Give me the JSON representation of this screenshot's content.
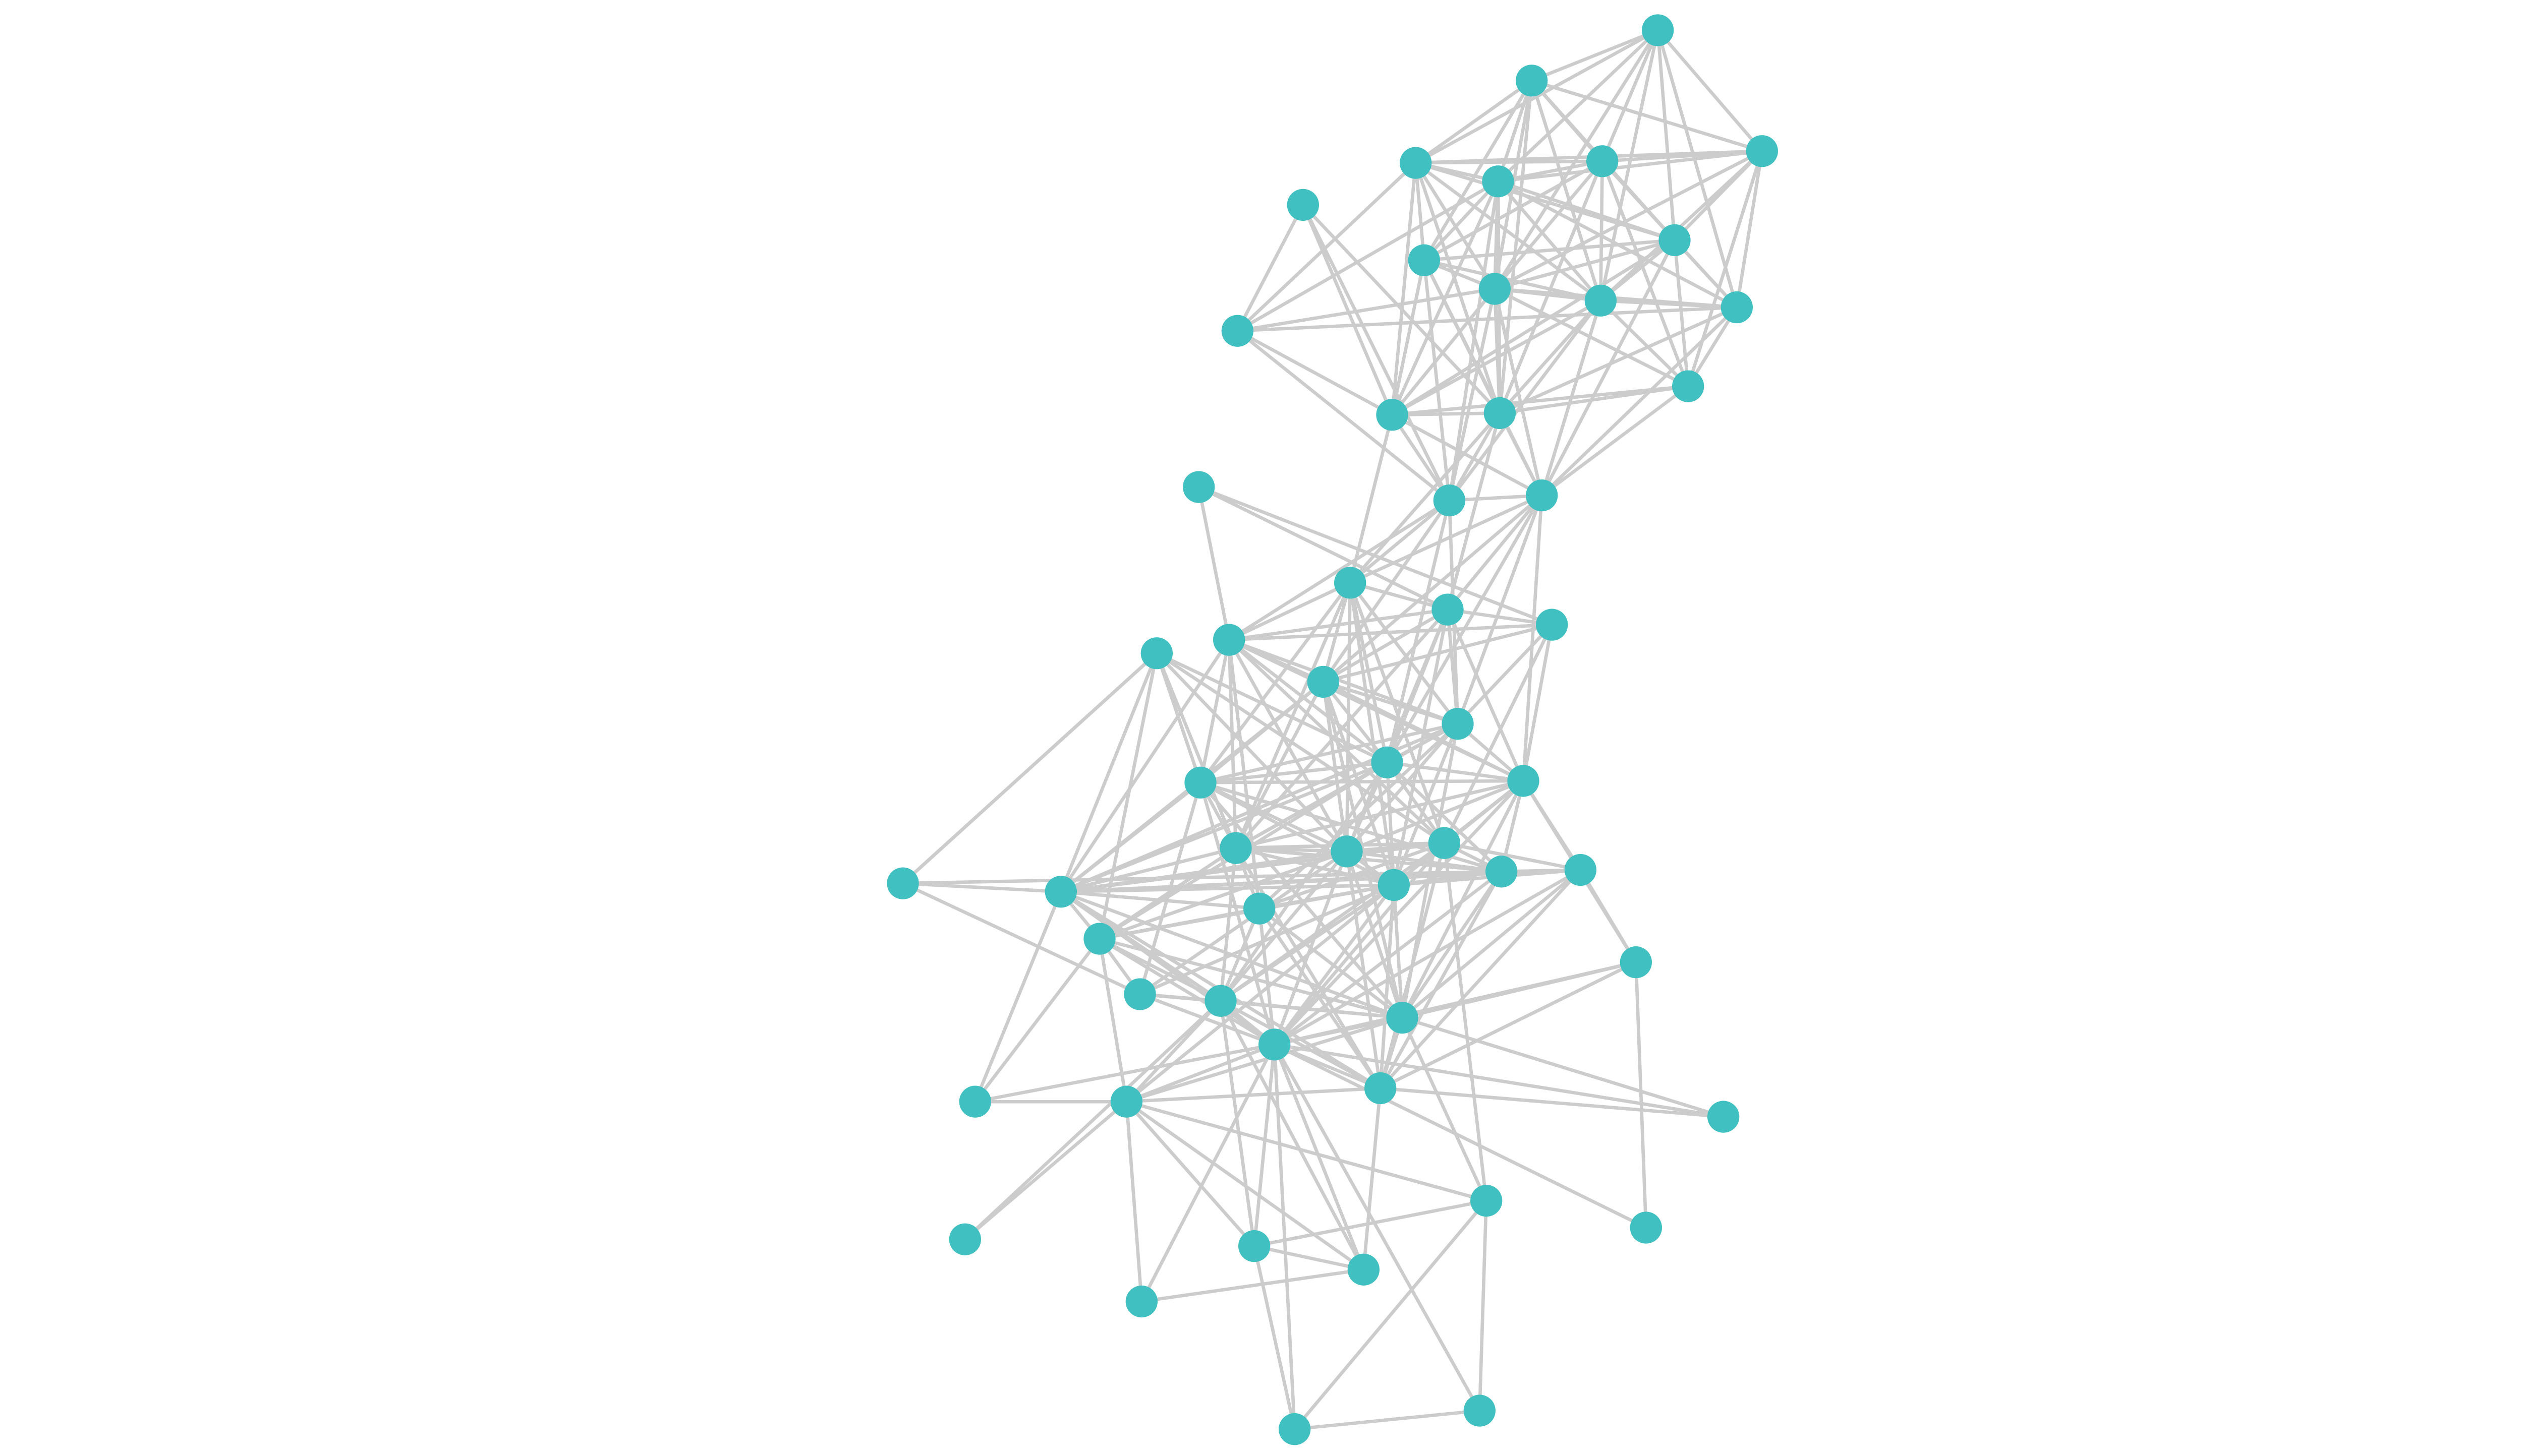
{
  "graph": {
    "type": "network",
    "directed": false,
    "node_color": "#40c0c0",
    "edge_color": "#cccccc",
    "background": "#ffffff",
    "node_count": 56,
    "edges": [
      [
        0,
        1
      ],
      [
        0,
        2
      ],
      [
        0,
        3
      ],
      [
        0,
        4
      ],
      [
        0,
        5
      ],
      [
        0,
        7
      ],
      [
        0,
        9
      ],
      [
        0,
        10
      ],
      [
        0,
        11
      ],
      [
        1,
        3
      ],
      [
        1,
        4
      ],
      [
        1,
        5
      ],
      [
        1,
        7
      ],
      [
        1,
        8
      ],
      [
        1,
        9
      ],
      [
        1,
        10
      ],
      [
        1,
        2
      ],
      [
        1,
        15
      ],
      [
        2,
        3
      ],
      [
        2,
        5
      ],
      [
        2,
        7
      ],
      [
        2,
        10
      ],
      [
        2,
        11
      ],
      [
        2,
        13
      ],
      [
        2,
        9
      ],
      [
        2,
        4
      ],
      [
        3,
        4
      ],
      [
        3,
        5
      ],
      [
        3,
        12
      ],
      [
        3,
        8
      ],
      [
        3,
        9
      ],
      [
        3,
        10
      ],
      [
        3,
        14
      ],
      [
        3,
        15
      ],
      [
        3,
        7
      ],
      [
        4,
        5
      ],
      [
        4,
        7
      ],
      [
        4,
        8
      ],
      [
        4,
        9
      ],
      [
        4,
        10
      ],
      [
        4,
        11
      ],
      [
        4,
        14
      ],
      [
        4,
        15
      ],
      [
        4,
        16
      ],
      [
        5,
        7
      ],
      [
        5,
        9
      ],
      [
        5,
        10
      ],
      [
        5,
        11
      ],
      [
        5,
        13
      ],
      [
        5,
        15
      ],
      [
        5,
        8
      ],
      [
        6,
        12
      ],
      [
        6,
        14
      ],
      [
        6,
        16
      ],
      [
        6,
        15
      ],
      [
        7,
        8
      ],
      [
        7,
        9
      ],
      [
        7,
        10
      ],
      [
        7,
        11
      ],
      [
        7,
        13
      ],
      [
        7,
        14
      ],
      [
        7,
        17
      ],
      [
        8,
        9
      ],
      [
        8,
        10
      ],
      [
        8,
        14
      ],
      [
        8,
        15
      ],
      [
        8,
        16
      ],
      [
        8,
        17
      ],
      [
        9,
        10
      ],
      [
        9,
        11
      ],
      [
        9,
        12
      ],
      [
        9,
        14
      ],
      [
        9,
        15
      ],
      [
        9,
        16
      ],
      [
        9,
        17
      ],
      [
        9,
        13
      ],
      [
        10,
        11
      ],
      [
        10,
        13
      ],
      [
        10,
        14
      ],
      [
        10,
        15
      ],
      [
        10,
        16
      ],
      [
        10,
        17
      ],
      [
        11,
        13
      ],
      [
        11,
        15
      ],
      [
        11,
        17
      ],
      [
        12,
        14
      ],
      [
        12,
        16
      ],
      [
        12,
        4
      ],
      [
        12,
        11
      ],
      [
        13,
        15
      ],
      [
        13,
        17
      ],
      [
        13,
        14
      ],
      [
        14,
        15
      ],
      [
        14,
        16
      ],
      [
        14,
        17
      ],
      [
        14,
        19
      ],
      [
        15,
        16
      ],
      [
        15,
        17
      ],
      [
        15,
        19
      ],
      [
        15,
        20
      ],
      [
        16,
        17
      ],
      [
        16,
        19
      ],
      [
        16,
        24
      ],
      [
        16,
        22
      ],
      [
        16,
        26
      ],
      [
        16,
        25
      ],
      [
        17,
        20
      ],
      [
        17,
        24
      ],
      [
        17,
        25
      ],
      [
        17,
        27
      ],
      [
        17,
        26
      ],
      [
        17,
        19
      ],
      [
        18,
        22
      ],
      [
        18,
        20
      ],
      [
        18,
        21
      ],
      [
        19,
        29
      ],
      [
        19,
        28
      ],
      [
        19,
        22
      ],
      [
        19,
        26
      ],
      [
        19,
        25
      ],
      [
        19,
        20
      ],
      [
        19,
        24
      ],
      [
        19,
        30
      ],
      [
        19,
        32
      ],
      [
        19,
        31
      ],
      [
        20,
        21
      ],
      [
        20,
        22
      ],
      [
        20,
        24
      ],
      [
        20,
        25
      ],
      [
        20,
        26
      ],
      [
        20,
        27
      ],
      [
        20,
        30
      ],
      [
        20,
        32
      ],
      [
        20,
        29
      ],
      [
        21,
        22
      ],
      [
        21,
        25
      ],
      [
        21,
        27
      ],
      [
        21,
        31
      ],
      [
        21,
        24
      ],
      [
        22,
        24
      ],
      [
        22,
        25
      ],
      [
        22,
        26
      ],
      [
        22,
        27
      ],
      [
        22,
        28
      ],
      [
        22,
        29
      ],
      [
        22,
        30
      ],
      [
        22,
        31
      ],
      [
        22,
        36
      ],
      [
        22,
        37
      ],
      [
        23,
        28
      ],
      [
        23,
        29
      ],
      [
        23,
        31
      ],
      [
        23,
        35
      ],
      [
        23,
        36
      ],
      [
        23,
        38
      ],
      [
        23,
        30
      ],
      [
        23,
        26
      ],
      [
        24,
        25
      ],
      [
        24,
        26
      ],
      [
        24,
        27
      ],
      [
        24,
        28
      ],
      [
        24,
        29
      ],
      [
        24,
        30
      ],
      [
        24,
        32
      ],
      [
        24,
        36
      ],
      [
        24,
        41
      ],
      [
        25,
        26
      ],
      [
        25,
        27
      ],
      [
        25,
        28
      ],
      [
        25,
        29
      ],
      [
        25,
        30
      ],
      [
        25,
        32
      ],
      [
        25,
        36
      ],
      [
        25,
        37
      ],
      [
        25,
        41
      ],
      [
        26,
        27
      ],
      [
        26,
        28
      ],
      [
        26,
        29
      ],
      [
        26,
        30
      ],
      [
        26,
        31
      ],
      [
        26,
        32
      ],
      [
        26,
        33
      ],
      [
        26,
        36
      ],
      [
        26,
        38
      ],
      [
        26,
        40
      ],
      [
        27,
        28
      ],
      [
        27,
        29
      ],
      [
        27,
        30
      ],
      [
        27,
        31
      ],
      [
        27,
        32
      ],
      [
        27,
        33
      ],
      [
        27,
        34
      ],
      [
        27,
        42
      ],
      [
        27,
        43
      ],
      [
        27,
        41
      ],
      [
        28,
        29
      ],
      [
        28,
        30
      ],
      [
        28,
        32
      ],
      [
        28,
        33
      ],
      [
        28,
        36
      ],
      [
        28,
        39
      ],
      [
        28,
        43
      ],
      [
        28,
        41
      ],
      [
        29,
        30
      ],
      [
        29,
        31
      ],
      [
        29,
        32
      ],
      [
        29,
        33
      ],
      [
        29,
        36
      ],
      [
        29,
        37
      ],
      [
        29,
        38
      ],
      [
        29,
        40
      ],
      [
        29,
        44
      ],
      [
        30,
        31
      ],
      [
        30,
        32
      ],
      [
        30,
        33
      ],
      [
        30,
        36
      ],
      [
        30,
        38
      ],
      [
        30,
        39
      ],
      [
        30,
        40
      ],
      [
        30,
        41
      ],
      [
        30,
        44
      ],
      [
        30,
        43
      ],
      [
        31,
        32
      ],
      [
        31,
        33
      ],
      [
        31,
        34
      ],
      [
        31,
        36
      ],
      [
        31,
        37
      ],
      [
        31,
        40
      ],
      [
        31,
        43
      ],
      [
        31,
        44
      ],
      [
        32,
        33
      ],
      [
        32,
        34
      ],
      [
        32,
        36
      ],
      [
        32,
        37
      ],
      [
        32,
        38
      ],
      [
        32,
        39
      ],
      [
        32,
        40
      ],
      [
        32,
        41
      ],
      [
        32,
        43
      ],
      [
        32,
        44
      ],
      [
        32,
        46
      ],
      [
        33,
        34
      ],
      [
        33,
        36
      ],
      [
        33,
        41
      ],
      [
        33,
        43
      ],
      [
        33,
        44
      ],
      [
        34,
        36
      ],
      [
        34,
        41
      ],
      [
        34,
        43
      ],
      [
        34,
        44
      ],
      [
        34,
        42
      ],
      [
        35,
        36
      ],
      [
        35,
        33
      ],
      [
        35,
        23
      ],
      [
        35,
        39
      ],
      [
        36,
        37
      ],
      [
        36,
        38
      ],
      [
        36,
        40
      ],
      [
        36,
        41
      ],
      [
        36,
        43
      ],
      [
        36,
        44
      ],
      [
        36,
        45
      ],
      [
        37,
        38
      ],
      [
        37,
        40
      ],
      [
        37,
        41
      ],
      [
        37,
        43
      ],
      [
        37,
        44
      ],
      [
        38,
        39
      ],
      [
        38,
        40
      ],
      [
        38,
        41
      ],
      [
        38,
        46
      ],
      [
        38,
        43
      ],
      [
        39,
        40
      ],
      [
        39,
        41
      ],
      [
        39,
        43
      ],
      [
        40,
        41
      ],
      [
        40,
        43
      ],
      [
        40,
        44
      ],
      [
        40,
        46
      ],
      [
        40,
        51
      ],
      [
        40,
        52
      ],
      [
        41,
        42
      ],
      [
        41,
        43
      ],
      [
        41,
        44
      ],
      [
        41,
        46
      ],
      [
        41,
        48
      ],
      [
        42,
        43
      ],
      [
        42,
        44
      ],
      [
        42,
        49
      ],
      [
        43,
        44
      ],
      [
        43,
        45
      ],
      [
        43,
        46
      ],
      [
        43,
        49
      ],
      [
        43,
        51
      ],
      [
        43,
        52
      ],
      [
        43,
        54
      ],
      [
        43,
        55
      ],
      [
        43,
        47
      ],
      [
        44,
        46
      ],
      [
        44,
        47
      ],
      [
        44,
        52
      ],
      [
        45,
        46
      ],
      [
        45,
        38
      ],
      [
        46,
        50
      ],
      [
        46,
        53
      ],
      [
        46,
        51
      ],
      [
        46,
        48
      ],
      [
        46,
        52
      ],
      [
        48,
        51
      ],
      [
        48,
        54
      ],
      [
        48,
        55
      ],
      [
        48,
        31
      ],
      [
        50,
        40
      ],
      [
        51,
        54
      ],
      [
        51,
        52
      ],
      [
        52,
        53
      ],
      [
        53,
        43
      ],
      [
        54,
        55
      ],
      [
        47,
        41
      ]
    ]
  }
}
